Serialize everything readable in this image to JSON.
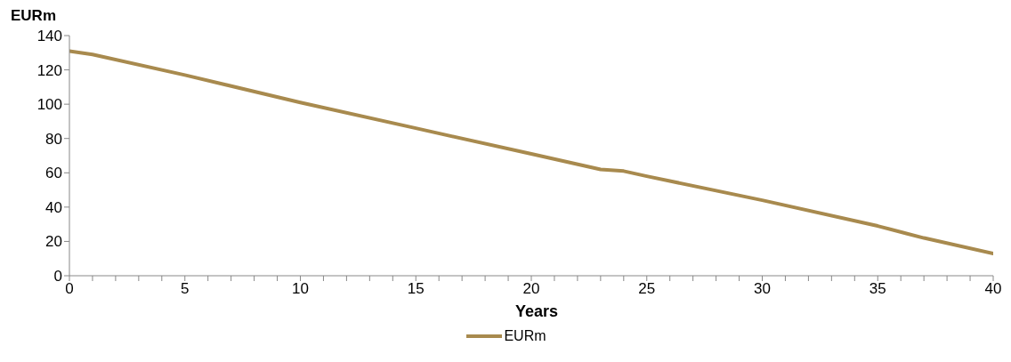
{
  "chart_data": {
    "type": "line",
    "xlabel": "Years",
    "ylabel": "EURm",
    "x": [
      0,
      1,
      5,
      10,
      15,
      20,
      23,
      24,
      25,
      30,
      35,
      37,
      40
    ],
    "series": [
      {
        "name": "EURm",
        "color": "#a88a4e",
        "values": [
          131,
          129,
          117,
          101,
          86,
          71,
          62,
          61,
          58,
          44,
          29,
          22,
          13
        ]
      }
    ],
    "xlim": [
      0,
      40
    ],
    "xticks": [
      0,
      {
        "value": 1,
        "label": null
      },
      {
        "value": 2,
        "label": null
      },
      {
        "value": 3,
        "label": null
      },
      {
        "value": 4,
        "label": null
      },
      5,
      {
        "value": 6,
        "label": null
      },
      {
        "value": 7,
        "label": null
      },
      {
        "value": 8,
        "label": null
      },
      {
        "value": 9,
        "label": null
      },
      10,
      {
        "value": 11,
        "label": null
      },
      {
        "value": 12,
        "label": null
      },
      {
        "value": 13,
        "label": null
      },
      {
        "value": 14,
        "label": null
      },
      15,
      {
        "value": 16,
        "label": null
      },
      {
        "value": 17,
        "label": null
      },
      {
        "value": 18,
        "label": null
      },
      {
        "value": 19,
        "label": null
      },
      20,
      {
        "value": 21,
        "label": null
      },
      {
        "value": 22,
        "label": null
      },
      {
        "value": 23,
        "label": null
      },
      {
        "value": 24,
        "label": null
      },
      25,
      {
        "value": 26,
        "label": null
      },
      {
        "value": 27,
        "label": null
      },
      {
        "value": 28,
        "label": null
      },
      {
        "value": 29,
        "label": null
      },
      30,
      {
        "value": 31,
        "label": null
      },
      {
        "value": 32,
        "label": null
      },
      {
        "value": 33,
        "label": null
      },
      {
        "value": 34,
        "label": null
      },
      35,
      {
        "value": 36,
        "label": null
      },
      {
        "value": 37,
        "label": null
      },
      {
        "value": 38,
        "label": null
      },
      {
        "value": 39,
        "label": null
      },
      40
    ],
    "ylim": [
      0,
      140
    ],
    "yticks": [
      0,
      20,
      40,
      60,
      80,
      100,
      120,
      140
    ],
    "grid": false,
    "legend": "bottom",
    "marker": "none",
    "line_style": "solid"
  }
}
